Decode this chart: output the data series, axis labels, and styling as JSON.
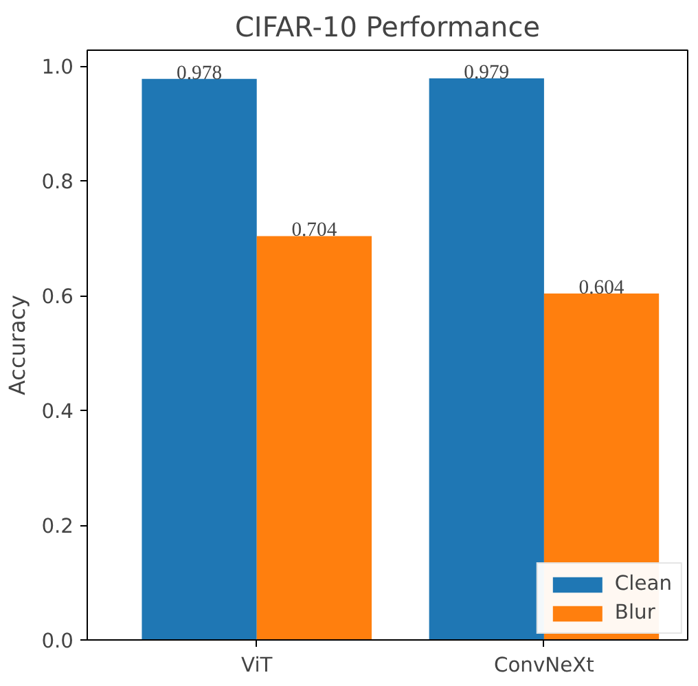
{
  "chart_data": {
    "type": "bar",
    "title": "CIFAR-10 Performance",
    "ylabel": "Accuracy",
    "categories": [
      "ViT",
      "ConvNeXt"
    ],
    "series": [
      {
        "name": "Clean",
        "color": "#1f77b4",
        "values": [
          0.978,
          0.979
        ]
      },
      {
        "name": "Blur",
        "color": "#ff7f0e",
        "values": [
          0.704,
          0.604
        ]
      }
    ],
    "ylim": [
      0,
      1.028
    ],
    "yticks": [
      {
        "value": 0,
        "label": "0.0"
      },
      {
        "value": 0.2,
        "label": "0.2"
      },
      {
        "value": 0.4,
        "label": "0.4"
      },
      {
        "value": 0.6,
        "label": "0.6"
      },
      {
        "value": 0.8,
        "label": "0.8"
      },
      {
        "value": 1.0,
        "label": "1.0"
      }
    ],
    "data_labels": true,
    "legend": "bottom right",
    "grid": false
  }
}
